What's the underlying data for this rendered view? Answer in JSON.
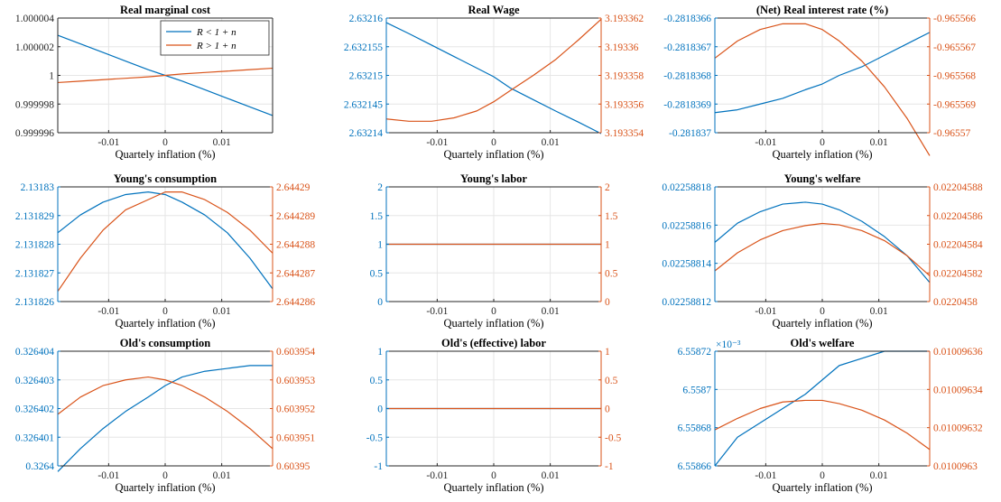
{
  "colors": {
    "blue": "#0072BD",
    "orange": "#D95319",
    "grid": "#e6e6e6",
    "axis": "#262626"
  },
  "x_ticks": [
    "-0.01",
    "0",
    "0.01"
  ],
  "legend": {
    "entries": [
      "R < 1 + n",
      "R > 1 + n"
    ],
    "location": "top-right",
    "panel": 0
  },
  "chart_data": [
    {
      "type": "line",
      "title": "Real marginal cost",
      "xlabel": "Quartely inflation (%)",
      "x": [
        -0.019,
        -0.015,
        -0.011,
        -0.007,
        -0.003,
        0.0,
        0.003,
        0.007,
        0.011,
        0.015,
        0.019
      ],
      "left": {
        "ylim": [
          0.999996,
          1.000004
        ],
        "yticks": [
          "1.000004",
          "1.000002",
          "1",
          "0.999998",
          "0.999996"
        ]
      },
      "right": null,
      "series": [
        {
          "name": "R < 1 + n",
          "axis": "left",
          "values": [
            1.0000028,
            1.0000022,
            1.0000016,
            1.000001,
            1.0000004,
            1.0,
            0.9999996,
            0.999999,
            0.9999984,
            0.9999978,
            0.9999972
          ]
        },
        {
          "name": "R > 1 + n",
          "axis": "left",
          "values": [
            0.9999995,
            0.9999996,
            0.9999997,
            0.9999998,
            0.9999999,
            1.0,
            1.0000001,
            1.0000002,
            1.0000003,
            1.0000004,
            1.0000005
          ]
        }
      ]
    },
    {
      "type": "line",
      "title": "Real Wage",
      "xlabel": "Quartely inflation (%)",
      "x": [
        -0.019,
        -0.015,
        -0.011,
        -0.007,
        -0.003,
        0.0,
        0.003,
        0.007,
        0.011,
        0.015,
        0.019
      ],
      "left": {
        "ylim": [
          2.632139,
          2.632164
        ],
        "yticks": [
          "2.63216",
          "2.632155",
          "2.63215",
          "2.632145",
          "2.63214"
        ]
      },
      "right": {
        "ylim": [
          3.193353,
          3.193363
        ],
        "yticks": [
          "3.193362",
          "3.19336",
          "3.193358",
          "3.193356",
          "3.193354"
        ]
      },
      "series": [
        {
          "axis": "left",
          "values": [
            2.632163,
            2.6321606,
            2.6321581,
            2.6321556,
            2.6321531,
            2.6321512,
            2.6321487,
            2.6321462,
            2.6321437,
            2.6321413,
            2.6321388
          ]
        },
        {
          "axis": "right",
          "values": [
            3.1933542,
            3.193354,
            3.193354,
            3.1933543,
            3.1933549,
            3.1933557,
            3.1933567,
            3.193358,
            3.1933594,
            3.1933611,
            3.1933629
          ]
        }
      ]
    },
    {
      "type": "line",
      "title": "(Net) Real interest rate (%)",
      "xlabel": "Quartely inflation (%)",
      "x": [
        -0.019,
        -0.015,
        -0.011,
        -0.007,
        -0.003,
        0.0,
        0.003,
        0.007,
        0.011,
        0.015,
        0.019
      ],
      "left": {
        "ylim": [
          -0.281837,
          -0.2818366
        ],
        "yticks": [
          "-0.2818366",
          "-0.2818367",
          "-0.2818368",
          "-0.2818369",
          "-0.281837"
        ]
      },
      "right": {
        "ylim": [
          -0.96557,
          -0.965566
        ],
        "yticks": [
          "-0.965566",
          "-0.965567",
          "-0.965568",
          "-0.965569",
          "-0.96557"
        ]
      },
      "series": [
        {
          "axis": "left",
          "values": [
            -0.28183693,
            -0.28183692,
            -0.2818369,
            -0.28183688,
            -0.28183685,
            -0.28183683,
            -0.2818368,
            -0.28183677,
            -0.28183673,
            -0.28183669,
            -0.28183665
          ]
        },
        {
          "axis": "right",
          "values": [
            -0.9655674,
            -0.9655668,
            -0.9655664,
            -0.9655662,
            -0.9655662,
            -0.9655664,
            -0.9655668,
            -0.9655675,
            -0.9655684,
            -0.9655695,
            -0.9655708
          ]
        }
      ]
    },
    {
      "type": "line",
      "title": "Young's consumption",
      "xlabel": "Quartely inflation (%)",
      "x": [
        -0.019,
        -0.015,
        -0.011,
        -0.007,
        -0.003,
        0.0,
        0.003,
        0.007,
        0.011,
        0.015,
        0.019
      ],
      "left": {
        "ylim": [
          2.131826,
          2.1318305
        ],
        "yticks": [
          "2.13183",
          "2.131829",
          "2.131828",
          "2.131827",
          "2.131826"
        ]
      },
      "right": {
        "ylim": [
          2.644286,
          2.6442905
        ],
        "yticks": [
          "2.64429",
          "2.644289",
          "2.644288",
          "2.644287",
          "2.644286"
        ]
      },
      "series": [
        {
          "axis": "left",
          "values": [
            2.1318287,
            2.1318294,
            2.1318299,
            2.1318302,
            2.1318303,
            2.1318302,
            2.1318299,
            2.1318294,
            2.1318287,
            2.1318277,
            2.1318265
          ]
        },
        {
          "axis": "right",
          "values": [
            2.6442864,
            2.6442877,
            2.6442888,
            2.6442896,
            2.64429,
            2.6442903,
            2.6442903,
            2.64429,
            2.6442895,
            2.6442888,
            2.6442879
          ]
        }
      ]
    },
    {
      "type": "line",
      "title": "Young's labor",
      "xlabel": "Quartely inflation (%)",
      "x": [
        -0.019,
        -0.015,
        -0.011,
        -0.007,
        -0.003,
        0.0,
        0.003,
        0.007,
        0.011,
        0.015,
        0.019
      ],
      "left": {
        "ylim": [
          0,
          2
        ],
        "yticks": [
          "2",
          "1.5",
          "1",
          "0.5",
          "0"
        ]
      },
      "right": {
        "ylim": [
          0,
          2
        ],
        "yticks": [
          "2",
          "1.5",
          "1",
          "0.5",
          "0"
        ]
      },
      "series": [
        {
          "axis": "left",
          "values": [
            1,
            1,
            1,
            1,
            1,
            1,
            1,
            1,
            1,
            1,
            1
          ]
        },
        {
          "axis": "right",
          "values": [
            1,
            1,
            1,
            1,
            1,
            1,
            1,
            1,
            1,
            1,
            1
          ]
        }
      ]
    },
    {
      "type": "line",
      "title": "Young's welfare",
      "xlabel": "Quartely inflation (%)",
      "x": [
        -0.019,
        -0.015,
        -0.011,
        -0.007,
        -0.003,
        0.0,
        0.003,
        0.007,
        0.011,
        0.015,
        0.019
      ],
      "left": {
        "ylim": [
          0.02258812,
          0.02258818
        ],
        "yticks": [
          "0.02258818",
          "0.02258816",
          "0.02258814",
          "0.02258812"
        ]
      },
      "right": {
        "ylim": [
          0.0220458,
          0.02204588
        ],
        "yticks": [
          "0.02204588",
          "0.02204586",
          "0.02204584",
          "0.02204582",
          "0.0220458"
        ]
      },
      "series": [
        {
          "axis": "left",
          "values": [
            0.022588151,
            0.022588161,
            0.022588167,
            0.022588171,
            0.022588172,
            0.022588171,
            0.022588168,
            0.022588162,
            0.022588154,
            0.022588144,
            0.02258813
          ]
        },
        {
          "axis": "right",
          "values": [
            0.0220458214,
            0.022045834,
            0.022045843,
            0.0220458495,
            0.022045853,
            0.0220458545,
            0.0220458535,
            0.0220458495,
            0.0220458425,
            0.022045832,
            0.022045818
          ]
        }
      ]
    },
    {
      "type": "line",
      "title": "Old's consumption",
      "xlabel": "Quartely inflation (%)",
      "x": [
        -0.019,
        -0.015,
        -0.011,
        -0.007,
        -0.003,
        0.0,
        0.003,
        0.007,
        0.011,
        0.015,
        0.019
      ],
      "left": {
        "ylim": [
          0.3264,
          0.326404
        ],
        "yticks": [
          "0.326404",
          "0.326403",
          "0.326402",
          "0.326401",
          "0.3264"
        ]
      },
      "right": {
        "ylim": [
          0.60395,
          0.603954
        ],
        "yticks": [
          "0.603954",
          "0.603953",
          "0.603952",
          "0.603951",
          "0.60395"
        ]
      },
      "series": [
        {
          "axis": "left",
          "values": [
            0.3263998,
            0.3264006,
            0.3264013,
            0.3264019,
            0.3264024,
            0.3264028,
            0.3264031,
            0.3264033,
            0.3264034,
            0.3264035,
            0.3264035
          ]
        },
        {
          "axis": "right",
          "values": [
            0.6039518,
            0.6039524,
            0.6039528,
            0.603953,
            0.6039531,
            0.603953,
            0.6039528,
            0.6039524,
            0.6039519,
            0.6039513,
            0.6039506
          ]
        }
      ]
    },
    {
      "type": "line",
      "title": "Old's (effective) labor",
      "xlabel": "Quartely inflation (%)",
      "x": [
        -0.019,
        -0.015,
        -0.011,
        -0.007,
        -0.003,
        0.0,
        0.003,
        0.007,
        0.011,
        0.015,
        0.019
      ],
      "left": {
        "ylim": [
          -1,
          1
        ],
        "yticks": [
          "1",
          "0.5",
          "0",
          "-0.5",
          "-1"
        ]
      },
      "right": {
        "ylim": [
          -1,
          1
        ],
        "yticks": [
          "1",
          "0.5",
          "0",
          "-0.5",
          "-1"
        ]
      },
      "series": [
        {
          "axis": "left",
          "values": [
            0,
            0,
            0,
            0,
            0,
            0,
            0,
            0,
            0,
            0,
            0
          ]
        },
        {
          "axis": "right",
          "values": [
            0,
            0,
            0,
            0,
            0,
            0,
            0,
            0,
            0,
            0,
            0
          ]
        }
      ]
    },
    {
      "type": "line",
      "title": "Old's welfare",
      "xlabel": "Quartely inflation (%)",
      "x": [
        -0.019,
        -0.015,
        -0.011,
        -0.007,
        -0.003,
        0.0,
        0.003,
        0.007,
        0.011,
        0.015,
        0.019
      ],
      "left": {
        "ylim": [
          6.55864,
          6.55872
        ],
        "yticks": [
          "6.55872",
          "6.5587",
          "6.55868",
          "6.55866"
        ],
        "exponent": "×10⁻³"
      },
      "right": {
        "ylim": [
          0.0100963,
          0.01009637
        ],
        "yticks": [
          "0.01009636",
          "0.01009634",
          "0.01009632",
          "0.0100963"
        ]
      },
      "series": [
        {
          "axis": "left",
          "values": [
            6.55864,
            6.55866,
            6.55867,
            6.55868,
            6.55869,
            6.5587,
            6.55871,
            6.558715,
            6.55872,
            6.55872,
            6.55872
          ]
        },
        {
          "axis": "right",
          "values": [
            0.010096322,
            0.010096329,
            0.010096335,
            0.010096339,
            0.01009634,
            0.01009634,
            0.010096338,
            0.010096334,
            0.010096328,
            0.01009632,
            0.01009631
          ]
        }
      ]
    }
  ]
}
